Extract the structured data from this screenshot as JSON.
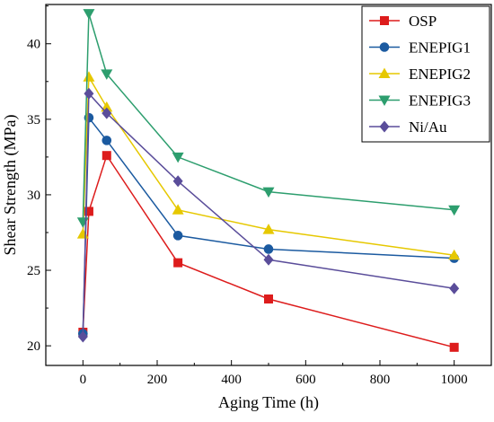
{
  "chart_data": {
    "type": "line",
    "xlabel": "Aging Time (h)",
    "ylabel": "Shear Strength (MPa)",
    "xlim": [
      -100,
      1100
    ],
    "ylim": [
      18.7,
      42.6
    ],
    "x_ticks": [
      0,
      200,
      400,
      600,
      800,
      1000
    ],
    "y_ticks": [
      20,
      25,
      30,
      35,
      40
    ],
    "grid": false,
    "legend_position": "top-right",
    "series": [
      {
        "name": "OSP",
        "color": "#dd1c1c",
        "marker": "square",
        "x": [
          0,
          16,
          64,
          256,
          500,
          1000
        ],
        "y": [
          20.9,
          28.9,
          32.6,
          25.5,
          23.1,
          19.9
        ]
      },
      {
        "name": "ENEPIG1",
        "color": "#1b5aa0",
        "marker": "circle",
        "x": [
          0,
          16,
          64,
          256,
          500,
          1000
        ],
        "y": [
          20.8,
          35.1,
          33.6,
          27.3,
          26.4,
          25.8
        ]
      },
      {
        "name": "ENEPIG2",
        "color": "#e6c800",
        "marker": "triangle-up",
        "x": [
          0,
          16,
          64,
          256,
          500,
          1000
        ],
        "y": [
          27.4,
          37.8,
          35.8,
          29.0,
          27.7,
          26.0
        ]
      },
      {
        "name": "ENEPIG3",
        "color": "#2d9e6e",
        "marker": "triangle-down",
        "x": [
          0,
          16,
          64,
          256,
          500,
          1000
        ],
        "y": [
          28.2,
          42.0,
          38.0,
          32.5,
          30.2,
          29.0
        ]
      },
      {
        "name": "Ni/Au",
        "color": "#5a4d9a",
        "marker": "diamond",
        "x": [
          0,
          16,
          64,
          256,
          500,
          1000
        ],
        "y": [
          20.6,
          36.7,
          35.4,
          30.9,
          25.7,
          23.8
        ]
      }
    ]
  }
}
